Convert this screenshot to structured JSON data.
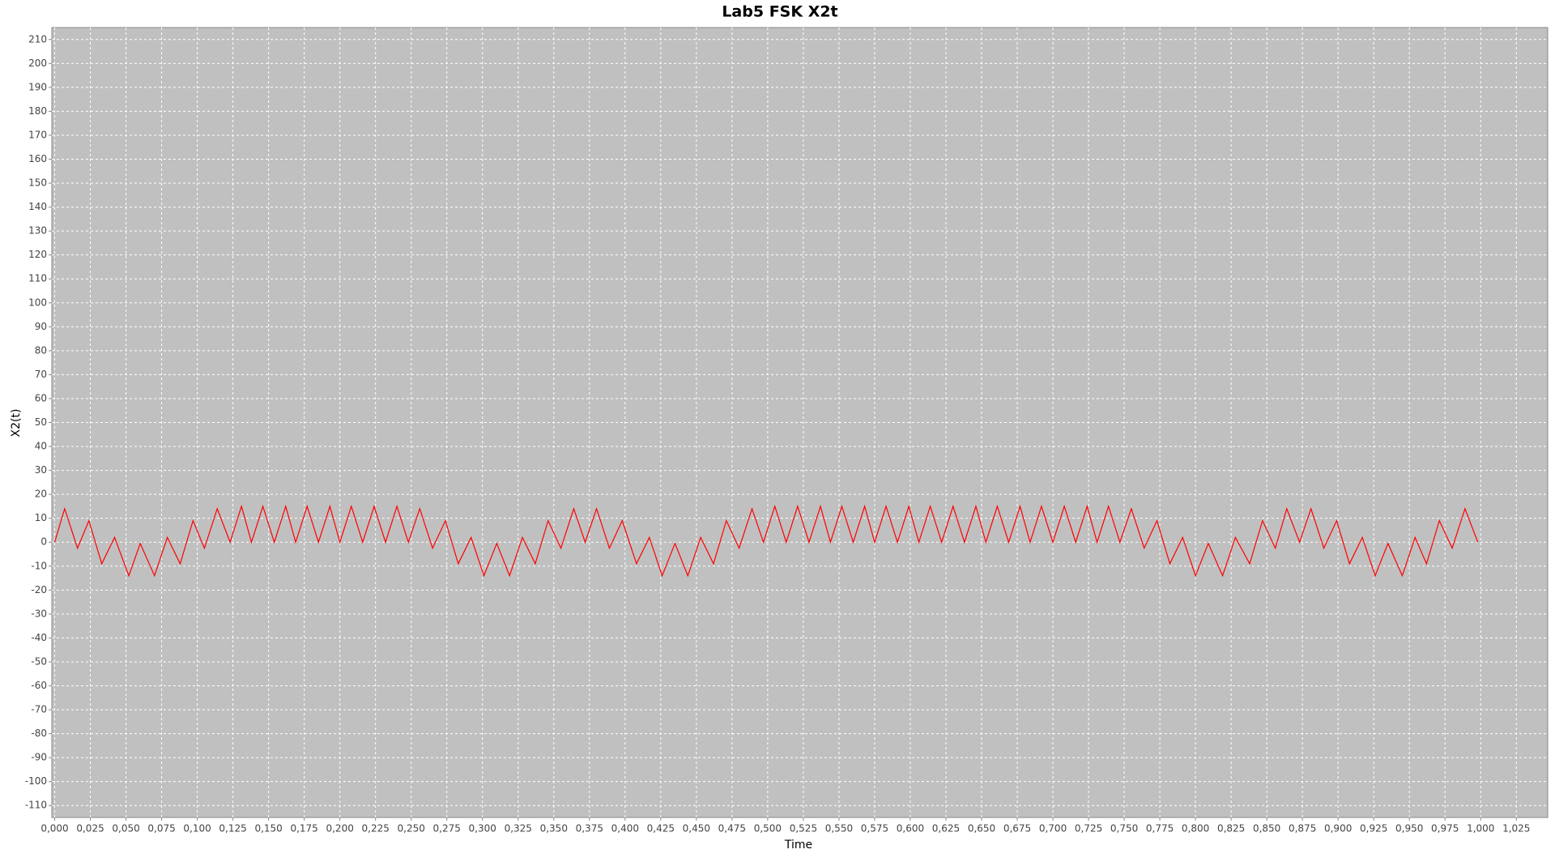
{
  "chart_data": {
    "type": "line",
    "title": "Lab5 FSK X2t",
    "x_label": "Time",
    "y_label": "X2(t)",
    "xlim": [
      -0.002,
      1.047
    ],
    "ylim": [
      -115,
      215
    ],
    "grid": true,
    "background": "#c0c0c0",
    "xticks": [
      {
        "value": 0,
        "label": "0,000"
      },
      {
        "value": 0.025,
        "label": "0,025"
      },
      {
        "value": 0.05,
        "label": "0,050"
      },
      {
        "value": 0.075,
        "label": "0,075"
      },
      {
        "value": 0.1,
        "label": "0,100"
      },
      {
        "value": 0.125,
        "label": "0,125"
      },
      {
        "value": 0.15,
        "label": "0,150"
      },
      {
        "value": 0.175,
        "label": "0,175"
      },
      {
        "value": 0.2,
        "label": "0,200"
      },
      {
        "value": 0.225,
        "label": "0,225"
      },
      {
        "value": 0.25,
        "label": "0,250"
      },
      {
        "value": 0.275,
        "label": "0,275"
      },
      {
        "value": 0.3,
        "label": "0,300"
      },
      {
        "value": 0.325,
        "label": "0,325"
      },
      {
        "value": 0.35,
        "label": "0,350"
      },
      {
        "value": 0.375,
        "label": "0,375"
      },
      {
        "value": 0.4,
        "label": "0,400"
      },
      {
        "value": 0.425,
        "label": "0,425"
      },
      {
        "value": 0.45,
        "label": "0,450"
      },
      {
        "value": 0.475,
        "label": "0,475"
      },
      {
        "value": 0.5,
        "label": "0,500"
      },
      {
        "value": 0.525,
        "label": "0,525"
      },
      {
        "value": 0.55,
        "label": "0,550"
      },
      {
        "value": 0.575,
        "label": "0,575"
      },
      {
        "value": 0.6,
        "label": "0,600"
      },
      {
        "value": 0.625,
        "label": "0,625"
      },
      {
        "value": 0.65,
        "label": "0,650"
      },
      {
        "value": 0.675,
        "label": "0,675"
      },
      {
        "value": 0.7,
        "label": "0,700"
      },
      {
        "value": 0.725,
        "label": "0,725"
      },
      {
        "value": 0.75,
        "label": "0,750"
      },
      {
        "value": 0.775,
        "label": "0,775"
      },
      {
        "value": 0.8,
        "label": "0,800"
      },
      {
        "value": 0.825,
        "label": "0,825"
      },
      {
        "value": 0.85,
        "label": "0,850"
      },
      {
        "value": 0.875,
        "label": "0,875"
      },
      {
        "value": 0.9,
        "label": "0,900"
      },
      {
        "value": 0.925,
        "label": "0,925"
      },
      {
        "value": 0.95,
        "label": "0,950"
      },
      {
        "value": 0.975,
        "label": "0,975"
      },
      {
        "value": 1,
        "label": "1,000"
      },
      {
        "value": 1.025,
        "label": "1,025"
      }
    ],
    "yticks": [
      -110,
      -100,
      -90,
      -80,
      -70,
      -60,
      -50,
      -40,
      -30,
      -20,
      -10,
      0,
      10,
      20,
      30,
      40,
      50,
      60,
      70,
      80,
      90,
      100,
      110,
      120,
      130,
      140,
      150,
      160,
      170,
      180,
      190,
      200,
      210
    ],
    "x": [
      0,
      0.007,
      0.016,
      0.024,
      0.033,
      0.042,
      0.052,
      0.06,
      0.07,
      0.079,
      0.088,
      0.097,
      0.105,
      0.114,
      0.123,
      0.131,
      0.138,
      0.146,
      0.154,
      0.162,
      0.169,
      0.177,
      0.185,
      0.193,
      0.2,
      0.208,
      0.216,
      0.224,
      0.232,
      0.24,
      0.248,
      0.256,
      0.265,
      0.274,
      0.283,
      0.292,
      0.301,
      0.31,
      0.319,
      0.328,
      0.337,
      0.346,
      0.355,
      0.364,
      0.372,
      0.38,
      0.389,
      0.398,
      0.408,
      0.417,
      0.426,
      0.435,
      0.444,
      0.453,
      0.462,
      0.471,
      0.48,
      0.489,
      0.497,
      0.505,
      0.513,
      0.521,
      0.529,
      0.537,
      0.544,
      0.552,
      0.56,
      0.568,
      0.575,
      0.583,
      0.591,
      0.599,
      0.606,
      0.614,
      0.622,
      0.63,
      0.638,
      0.646,
      0.653,
      0.661,
      0.669,
      0.677,
      0.684,
      0.692,
      0.7,
      0.708,
      0.716,
      0.724,
      0.731,
      0.739,
      0.747,
      0.755,
      0.764,
      0.773,
      0.782,
      0.791,
      0.8,
      0.809,
      0.819,
      0.828,
      0.838,
      0.847,
      0.856,
      0.864,
      0.873,
      0.881,
      0.89,
      0.899,
      0.908,
      0.917,
      0.926,
      0.935,
      0.945,
      0.954,
      0.962,
      0.971,
      0.98,
      0.989,
      0.998
    ],
    "series": [
      {
        "color": "#ff0000",
        "values": [
          0,
          14,
          -2.5,
          9,
          -9,
          2,
          -14,
          -0.5,
          -14,
          2,
          -9,
          9,
          -2.5,
          14,
          0,
          15,
          0,
          15,
          0,
          15,
          0,
          15,
          0,
          15,
          0,
          15,
          0,
          15,
          0,
          15,
          0,
          14,
          -2.5,
          9,
          -9,
          2,
          -14,
          -0.5,
          -14,
          2,
          -9,
          9,
          -2.5,
          14,
          0,
          14,
          -2.5,
          9,
          -9,
          2,
          -14,
          -0.5,
          -14,
          2,
          -9,
          9,
          -2.5,
          14,
          0,
          15,
          0,
          15,
          0,
          15,
          0,
          15,
          0,
          15,
          0,
          15,
          0,
          15,
          0,
          15,
          0,
          15,
          0,
          15,
          0,
          15,
          0,
          15,
          0,
          15,
          0,
          15,
          0,
          15,
          0,
          15,
          0,
          14,
          -2.5,
          9,
          -9,
          2,
          -14,
          -0.5,
          -14,
          2,
          -9,
          9,
          -2.5,
          14,
          0,
          14,
          -2.5,
          9,
          -9,
          2,
          -14,
          -0.5,
          -14,
          2,
          -9,
          9,
          -2.5,
          14,
          0
        ]
      }
    ]
  }
}
